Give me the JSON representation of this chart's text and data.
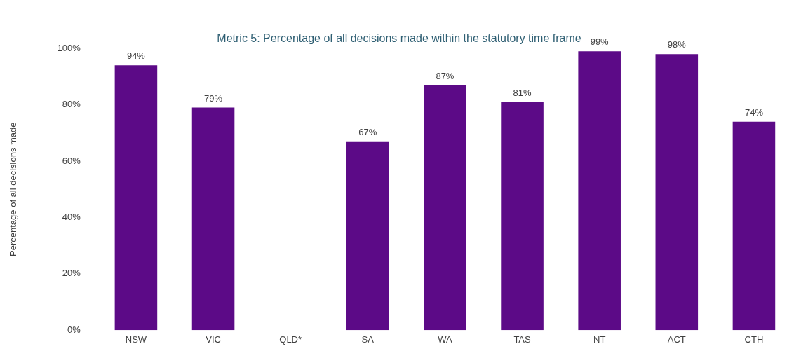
{
  "chart_data": {
    "type": "bar",
    "title": "Metric 5: Percentage of all decisions made within the statutory time frame",
    "ylabel": "Percentage of all decisions made",
    "categories": [
      "NSW",
      "VIC",
      "QLD*",
      "SA",
      "WA",
      "TAS",
      "NT",
      "ACT",
      "CTH"
    ],
    "values": [
      94,
      79,
      null,
      67,
      87,
      81,
      99,
      98,
      74
    ],
    "value_labels": [
      "94%",
      "79%",
      null,
      "67%",
      "87%",
      "81%",
      "99%",
      "98%",
      "74%"
    ],
    "color": "#5c0a87",
    "ylim": [
      0,
      100
    ],
    "yticks": [
      {
        "value": 0,
        "label": "0%"
      },
      {
        "value": 20,
        "label": "20%"
      },
      {
        "value": 40,
        "label": "40%"
      },
      {
        "value": 60,
        "label": "60%"
      },
      {
        "value": 80,
        "label": "80%"
      },
      {
        "value": 100,
        "label": "100%"
      }
    ],
    "grid": false,
    "legend": false
  }
}
